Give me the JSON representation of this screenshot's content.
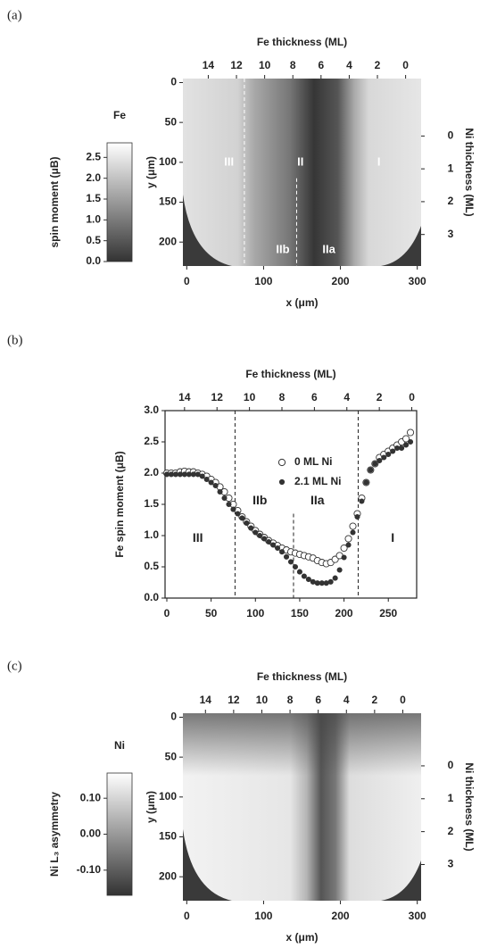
{
  "chart_data": [
    {
      "type": "heatmap",
      "panel": "(a)",
      "title": "Fe",
      "colorbar_label": "spin moment (μB)",
      "clim": [
        0,
        2.85
      ],
      "colorbar_colors": [
        "#333333",
        "#ffffff"
      ],
      "colorbar_ticks": [
        {
          "value": 0,
          "label": "0.0"
        },
        {
          "value": 0.5,
          "label": "0.5"
        },
        {
          "value": 1,
          "label": "1.0"
        },
        {
          "value": 1.5,
          "label": "1.5"
        },
        {
          "value": 2,
          "label": "2.0"
        },
        {
          "value": 2.5,
          "label": "2.5"
        }
      ],
      "xlabel": "x (μm)",
      "ylabel": "y (μm)",
      "x2label": "Fe thickness (ML)",
      "y2label": "Ni thickness (ML)",
      "xlim": [
        -5,
        305
      ],
      "xticks": [
        0,
        100,
        200,
        300
      ],
      "ylim": [
        230,
        -5
      ],
      "yticks": [
        0,
        50,
        100,
        150,
        200
      ],
      "x2lim": [
        15.8,
        -1.1
      ],
      "x2ticks": [
        14,
        12,
        10,
        8,
        6,
        4,
        2,
        0
      ],
      "y2lim": [
        3.96,
        -1.75
      ],
      "y2ticks": [
        0,
        1,
        2,
        3
      ],
      "vlines": [
        {
          "x": 75
        },
        {
          "x": 143,
          "ymin": 120
        }
      ],
      "annotations": [
        {
          "text": "III",
          "x": 55,
          "y": 100
        },
        {
          "text": "II",
          "x": 148,
          "y": 100
        },
        {
          "text": "I",
          "x": 250,
          "y": 100
        },
        {
          "text": "IIb",
          "x": 125,
          "y": 210
        },
        {
          "text": "IIa",
          "x": 185,
          "y": 210
        }
      ]
    },
    {
      "type": "scatter",
      "panel": "(b)",
      "ylabel": "Fe spin moment (μB)",
      "x2label": "Fe thickness (ML)",
      "xlim": [
        -2,
        282
      ],
      "xticks": [
        0,
        50,
        100,
        150,
        200,
        250
      ],
      "ylim": [
        0,
        3
      ],
      "yticks": [
        {
          "value": 0,
          "label": "0.0"
        },
        {
          "value": 0.5,
          "label": "0.5"
        },
        {
          "value": 1,
          "label": "1.0"
        },
        {
          "value": 1.5,
          "label": "1.5"
        },
        {
          "value": 2,
          "label": "2.0"
        },
        {
          "value": 2.5,
          "label": "2.5"
        },
        {
          "value": 3,
          "label": "3.0"
        }
      ],
      "x2lim": [
        15.2,
        -0.3
      ],
      "x2ticks": [
        14,
        12,
        10,
        8,
        6,
        4,
        2,
        0
      ],
      "legend": "top",
      "x": [
        0,
        5,
        10,
        15,
        20,
        25,
        30,
        35,
        40,
        45,
        50,
        55,
        60,
        65,
        70,
        75,
        80,
        85,
        90,
        95,
        100,
        105,
        110,
        115,
        120,
        125,
        130,
        135,
        140,
        145,
        150,
        155,
        160,
        165,
        170,
        175,
        180,
        185,
        190,
        195,
        200,
        205,
        210,
        215,
        220,
        225,
        230,
        235,
        240,
        245,
        250,
        255,
        260,
        265,
        270,
        275
      ],
      "series": [
        {
          "name": "0 ML Ni",
          "color": "#333333",
          "marker": "open",
          "values": [
            2.0,
            2.0,
            2.0,
            2.02,
            2.03,
            2.02,
            2.02,
            2.0,
            1.98,
            1.95,
            1.9,
            1.85,
            1.78,
            1.7,
            1.6,
            1.5,
            1.4,
            1.3,
            1.22,
            1.15,
            1.08,
            1.02,
            0.97,
            0.92,
            0.88,
            0.84,
            0.8,
            0.77,
            0.74,
            0.72,
            0.7,
            0.68,
            0.66,
            0.64,
            0.6,
            0.57,
            0.55,
            0.57,
            0.62,
            0.68,
            0.8,
            0.95,
            1.15,
            1.35,
            1.6,
            1.85,
            2.05,
            2.15,
            2.25,
            2.3,
            2.35,
            2.4,
            2.45,
            2.5,
            2.55,
            2.65
          ]
        },
        {
          "name": "2.1 ML Ni",
          "color": "#333333",
          "marker": "filled",
          "values": [
            1.98,
            1.98,
            1.98,
            1.98,
            1.98,
            1.98,
            1.98,
            1.98,
            1.95,
            1.9,
            1.85,
            1.8,
            1.7,
            1.6,
            1.5,
            1.42,
            1.35,
            1.28,
            1.2,
            1.12,
            1.05,
            1.0,
            0.95,
            0.9,
            0.85,
            0.8,
            0.74,
            0.66,
            0.58,
            0.5,
            0.42,
            0.35,
            0.3,
            0.26,
            0.24,
            0.24,
            0.24,
            0.26,
            0.32,
            0.45,
            0.65,
            0.85,
            1.05,
            1.3,
            1.55,
            1.85,
            2.05,
            2.15,
            2.2,
            2.25,
            2.3,
            2.35,
            2.4,
            2.4,
            2.45,
            2.5
          ]
        }
      ],
      "vlines": [
        {
          "x": 77
        },
        {
          "x": 143,
          "ymax": 1.35
        },
        {
          "x": 216
        }
      ],
      "annotations": [
        {
          "text": "III",
          "x": 35,
          "y": 0.95
        },
        {
          "text": "IIb",
          "x": 105,
          "y": 1.55
        },
        {
          "text": "IIa",
          "x": 170,
          "y": 1.55
        },
        {
          "text": "I",
          "x": 255,
          "y": 0.95
        }
      ]
    },
    {
      "type": "heatmap",
      "panel": "(c)",
      "title": "Ni",
      "colorbar_label": "Ni L₃ asymmetry",
      "clim": [
        -0.17,
        0.17
      ],
      "colorbar_colors": [
        "#333333",
        "#ffffff"
      ],
      "colorbar_ticks": [
        {
          "value": 0.1,
          "label": "0.10"
        },
        {
          "value": 0,
          "label": "0.00"
        },
        {
          "value": -0.1,
          "label": "-0.10"
        }
      ],
      "xlabel": "x (μm)",
      "ylabel": "y (μm)",
      "x2label": "Fe thickness (ML)",
      "y2label": "Ni thickness (ML)",
      "xlim": [
        -5,
        305
      ],
      "xticks": [
        0,
        100,
        200,
        300
      ],
      "ylim": [
        230,
        -5
      ],
      "yticks": [
        0,
        50,
        100,
        150,
        200
      ],
      "x2lim": [
        15.6,
        -1.3
      ],
      "x2ticks": [
        14,
        12,
        10,
        8,
        6,
        4,
        2,
        0
      ],
      "y2lim": [
        4.1,
        -1.6
      ],
      "y2ticks": [
        0,
        1,
        2,
        3
      ]
    }
  ]
}
